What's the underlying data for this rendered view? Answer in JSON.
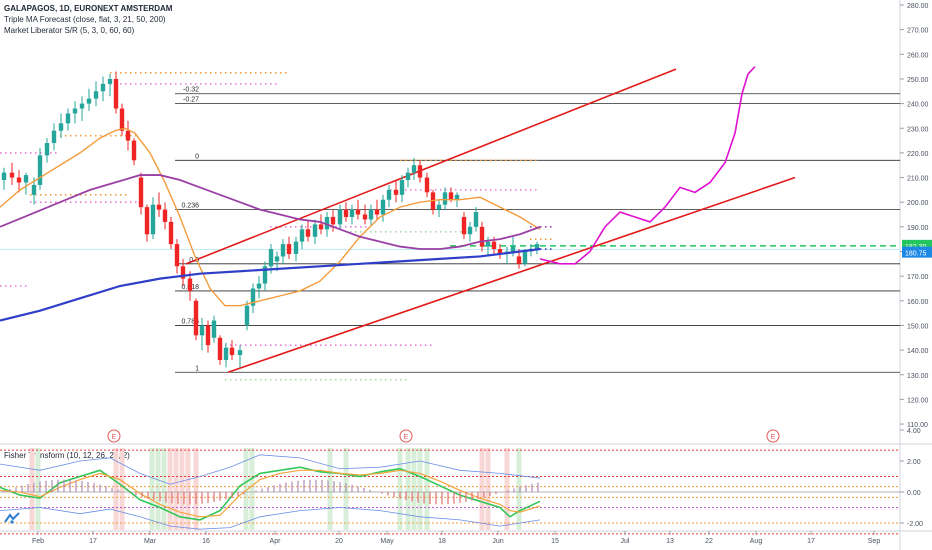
{
  "legend": {
    "symbol": "GALAPAGOS, 1D, EURONEXT AMSTERDAM",
    "indicator1": "Triple MA Forecast (close, flat, 3, 21, 50, 200)",
    "indicator2": "Market Liberator S/R (5, 3, 0, 60, 60)"
  },
  "sub_legend": "Fisher Transform (10, 12, 26, 21, 2)",
  "price_axis": [
    "280.00",
    "270.00",
    "260.00",
    "250.00",
    "240.00",
    "230.00",
    "220.00",
    "210.00",
    "200.00",
    "190.00",
    "180.00",
    "170.00",
    "160.00",
    "150.00",
    "140.00",
    "130.00",
    "120.00",
    "110.00"
  ],
  "fib_labels": [
    "-0.32",
    "-0.27",
    "0",
    "0.236",
    "0.5",
    "0.618",
    "0.786",
    "1"
  ],
  "price_tags": {
    "green": "182.30",
    "blue": "180.75"
  },
  "earnings_marker": "E",
  "sub_axis": [
    "4.00",
    "2.00",
    "0.00",
    "-2.00"
  ],
  "time_axis": [
    "Feb",
    "17",
    "Mar",
    "16",
    "Apr",
    "20",
    "May",
    "18",
    "Jun",
    "15",
    "Jul",
    "13",
    "22",
    "Aug",
    "17",
    "Sep"
  ],
  "colors": {
    "up": "#26a69a",
    "down": "#ef2525",
    "ma_fast": "#f39c3d",
    "ma_mid": "#9b3fa5",
    "ma_slow": "#2f3fc8",
    "channel": "#e31b1b",
    "forecast": "#e010d0",
    "support": "#22c55e"
  },
  "chart_data": {
    "type": "candlestick",
    "title": "GALAPAGOS, 1D, EURONEXT AMSTERDAM",
    "ylim": [
      105,
      285
    ],
    "fib_levels": [
      {
        "label": "-0.32",
        "value": 244
      },
      {
        "label": "-0.27",
        "value": 240
      },
      {
        "label": "0",
        "value": 217
      },
      {
        "label": "0.236",
        "value": 197
      },
      {
        "label": "0.5",
        "value": 175
      },
      {
        "label": "0.618",
        "value": 164
      },
      {
        "label": "0.786",
        "value": 150
      },
      {
        "label": "1",
        "value": 131
      }
    ],
    "last_price": 180.75,
    "support_level": 182.3
  }
}
